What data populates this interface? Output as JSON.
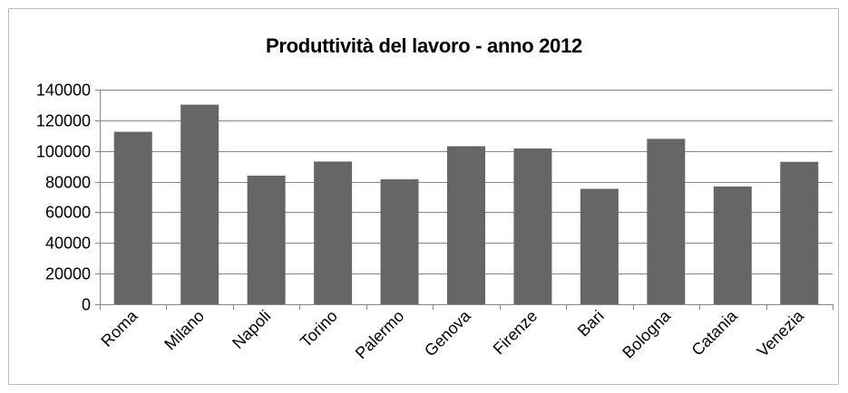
{
  "chart_data": {
    "type": "bar",
    "title": "Produttività del lavoro - anno 2012",
    "xlabel": "",
    "ylabel": "",
    "categories": [
      "Roma",
      "Milano",
      "Napoli",
      "Torino",
      "Palermo",
      "Genova",
      "Firenze",
      "Bari",
      "Bologna",
      "Catania",
      "Venezia"
    ],
    "values": [
      112500,
      130200,
      83900,
      93100,
      81500,
      103100,
      101600,
      75300,
      107900,
      76800,
      92900
    ],
    "ylim": [
      0,
      140000
    ],
    "yticks": [
      "0",
      "20000",
      "40000",
      "60000",
      "80000",
      "100000",
      "120000",
      "140000"
    ],
    "grid": "horizontal",
    "legend": "none",
    "colors": {
      "bar": "#666666",
      "grid": "#888888",
      "axis": "#888888",
      "border": "#bdbdbd"
    }
  }
}
